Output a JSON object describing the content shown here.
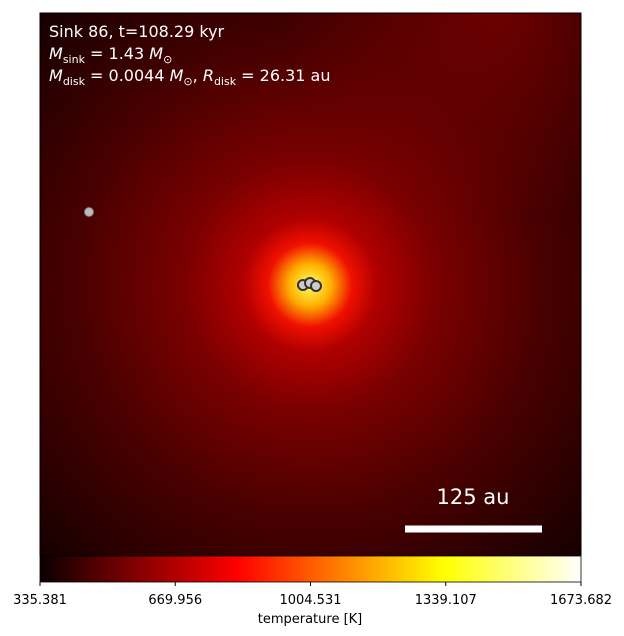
{
  "chart_data": {
    "type": "image",
    "title_lines": [
      [
        "Sink 86, t=108.29 kyr"
      ],
      [
        "M",
        "sink",
        " = 1.43 ",
        "M",
        "⊙"
      ],
      [
        "M",
        "disk",
        " = 0.0044 ",
        "M",
        "⊙",
        ", ",
        "R",
        "disk",
        " = 26.31 au"
      ]
    ],
    "scale_bar_label": "125 au",
    "colorbar": {
      "label": "temperature [K]",
      "colormap": "hot",
      "xlim": [
        335.381,
        1673.682
      ],
      "xticks": [
        335.381,
        669.956,
        1004.531,
        1339.107,
        1673.682
      ]
    }
  }
}
